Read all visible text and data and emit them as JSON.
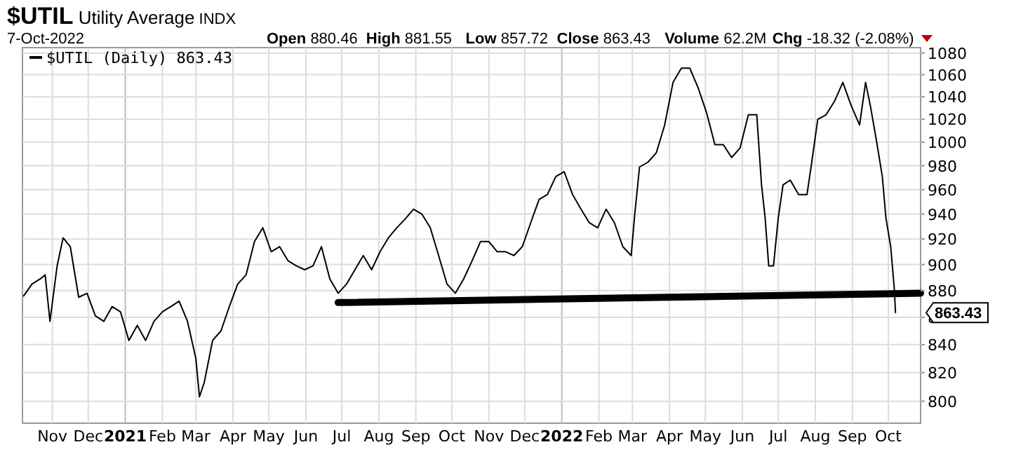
{
  "chart_data": {
    "type": "line",
    "title": "$UTIL Utility Average INDX",
    "subtitle": "7-Oct-2022",
    "annotations": [
      "Open 880.46",
      "High 881.55",
      "Low 857.72",
      "Close 863.43",
      "Volume 62.2M",
      "Chg -18.32 (-2.08%)",
      {
        "text": "863.43",
        "x": "2022-10-07",
        "y": 863.43
      }
    ],
    "x": [
      "2020-10-08",
      "2020-10-15",
      "2020-10-22",
      "2020-10-26",
      "2020-10-30",
      "2020-11-05",
      "2020-11-10",
      "2020-11-16",
      "2020-11-23",
      "2020-11-30",
      "2020-12-07",
      "2020-12-14",
      "2020-12-21",
      "2020-12-28",
      "2021-01-04",
      "2021-01-11",
      "2021-01-18",
      "2021-01-25",
      "2021-02-01",
      "2021-02-08",
      "2021-02-15",
      "2021-02-22",
      "2021-03-01",
      "2021-03-04",
      "2021-03-08",
      "2021-03-15",
      "2021-03-22",
      "2021-03-29",
      "2021-04-05",
      "2021-04-12",
      "2021-04-19",
      "2021-04-26",
      "2021-05-03",
      "2021-05-10",
      "2021-05-17",
      "2021-05-24",
      "2021-05-31",
      "2021-06-07",
      "2021-06-14",
      "2021-06-21",
      "2021-06-28",
      "2021-07-05",
      "2021-07-12",
      "2021-07-19",
      "2021-07-26",
      "2021-08-02",
      "2021-08-09",
      "2021-08-16",
      "2021-08-23",
      "2021-08-30",
      "2021-09-06",
      "2021-09-13",
      "2021-09-20",
      "2021-09-27",
      "2021-10-04",
      "2021-10-11",
      "2021-10-18",
      "2021-10-25",
      "2021-11-01",
      "2021-11-08",
      "2021-11-15",
      "2021-11-22",
      "2021-11-29",
      "2021-12-06",
      "2021-12-13",
      "2021-12-20",
      "2021-12-27",
      "2022-01-03",
      "2022-01-10",
      "2022-01-17",
      "2022-01-24",
      "2022-01-31",
      "2022-02-07",
      "2022-02-14",
      "2022-02-21",
      "2022-02-28",
      "2022-03-03",
      "2022-03-07",
      "2022-03-14",
      "2022-03-21",
      "2022-03-28",
      "2022-04-04",
      "2022-04-11",
      "2022-04-18",
      "2022-04-25",
      "2022-05-02",
      "2022-05-09",
      "2022-05-16",
      "2022-05-23",
      "2022-05-30",
      "2022-06-06",
      "2022-06-13",
      "2022-06-17",
      "2022-06-20",
      "2022-06-23",
      "2022-06-27",
      "2022-07-01",
      "2022-07-05",
      "2022-07-11",
      "2022-07-18",
      "2022-07-25",
      "2022-07-29",
      "2022-08-03",
      "2022-08-10",
      "2022-08-17",
      "2022-08-24",
      "2022-08-31",
      "2022-09-07",
      "2022-09-12",
      "2022-09-16",
      "2022-09-21",
      "2022-09-26",
      "2022-09-29",
      "2022-10-03",
      "2022-10-06",
      "2022-10-07"
    ],
    "series": [
      {
        "name": "$UTIL (Daily) 863.43",
        "color": "#000000",
        "values": [
          876,
          885,
          889,
          892,
          857,
          899,
          921,
          914,
          875,
          878,
          861,
          857,
          868,
          864,
          843,
          854,
          843,
          857,
          864,
          868,
          872,
          857,
          830,
          803,
          813,
          843,
          850,
          868,
          885,
          892,
          918,
          929,
          910,
          914,
          903,
          899,
          896,
          899,
          914,
          889,
          878,
          885,
          896,
          907,
          896,
          910,
          921,
          929,
          936,
          944,
          940,
          929,
          907,
          885,
          878,
          889,
          903,
          918,
          918,
          910,
          910,
          907,
          914,
          933,
          952,
          956,
          971,
          975,
          956,
          944,
          933,
          929,
          944,
          933,
          914,
          907,
          940,
          979,
          983,
          991,
          1015,
          1053,
          1066,
          1066,
          1048,
          1026,
          998,
          998,
          987,
          995,
          1024,
          1024,
          964,
          937,
          899,
          899,
          937,
          964,
          968,
          956,
          956,
          983,
          1020,
          1024,
          1036,
          1053,
          1032,
          1015,
          1053,
          1032,
          1002,
          971,
          937,
          914,
          881.75,
          863.43
        ]
      },
      {
        "type": "line",
        "color": "#000000",
        "x": [
          "2021-06-28",
          "2022-10-28"
        ],
        "values": [
          871,
          878
        ]
      }
    ],
    "xlim": [
      "2020-10-07",
      "2022-10-28"
    ],
    "xticks": [
      {
        "value": "2020-11-01",
        "label": "Nov"
      },
      {
        "value": "2020-12-01",
        "label": "Dec"
      },
      {
        "value": "2021-01-01",
        "label": "2021"
      },
      {
        "value": "2021-02-01",
        "label": "Feb"
      },
      {
        "value": "2021-03-01",
        "label": "Mar"
      },
      {
        "value": "2021-04-01",
        "label": "Apr"
      },
      {
        "value": "2021-05-01",
        "label": "May"
      },
      {
        "value": "2021-06-01",
        "label": "Jun"
      },
      {
        "value": "2021-07-01",
        "label": "Jul"
      },
      {
        "value": "2021-08-01",
        "label": "Aug"
      },
      {
        "value": "2021-09-01",
        "label": "Sep"
      },
      {
        "value": "2021-10-01",
        "label": "Oct"
      },
      {
        "value": "2021-11-01",
        "label": "Nov"
      },
      {
        "value": "2021-12-01",
        "label": "Dec"
      },
      {
        "value": "2022-01-01",
        "label": "2022"
      },
      {
        "value": "2022-02-01",
        "label": "Feb"
      },
      {
        "value": "2022-03-01",
        "label": "Mar"
      },
      {
        "value": "2022-04-01",
        "label": "Apr"
      },
      {
        "value": "2022-05-01",
        "label": "May"
      },
      {
        "value": "2022-06-01",
        "label": "Jun"
      },
      {
        "value": "2022-07-01",
        "label": "Jul"
      },
      {
        "value": "2022-08-01",
        "label": "Aug"
      },
      {
        "value": "2022-09-01",
        "label": "Sep"
      },
      {
        "value": "2022-10-01",
        "label": "Oct"
      }
    ],
    "ylim": [
      785,
      1085
    ],
    "yticks": [
      800,
      820,
      840,
      860,
      880,
      900,
      920,
      940,
      960,
      980,
      1000,
      1020,
      1040,
      1060,
      1080
    ],
    "log": true,
    "grid": true,
    "legend": "top left",
    "marker": "none",
    "line_style": "solid"
  }
}
